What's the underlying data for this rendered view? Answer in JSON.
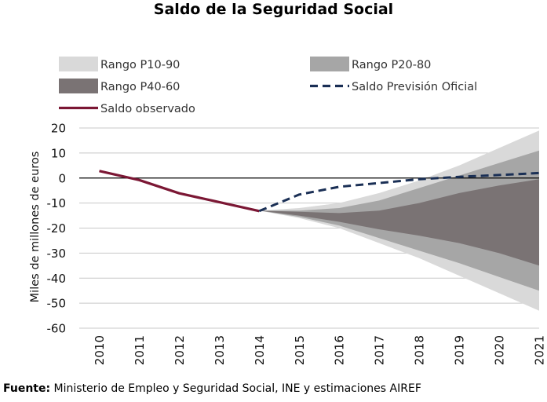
{
  "colors": {
    "p10_90": "#d9d9d9",
    "p20_80": "#a6a6a6",
    "p40_60": "#7a7374",
    "observed": "#7b1734",
    "official": "#1a2f55",
    "grid": "#c8c8c8",
    "zero_line": "#000000"
  },
  "source": {
    "label": "Fuente:",
    "text": " Ministerio de Empleo y Seguridad Social, INE y estimaciones AIREF"
  },
  "chart_data": {
    "type": "area",
    "title": "Saldo de la Seguridad Social",
    "ylabel": "Miles de millones de euros",
    "xlabel": "",
    "x": [
      2010,
      2011,
      2012,
      2013,
      2014,
      2015,
      2016,
      2017,
      2018,
      2019,
      2020,
      2021
    ],
    "x_tick_labels": [
      "2010",
      "2011",
      "2012",
      "2013",
      "2014",
      "2015",
      "2016",
      "2017",
      "2018",
      "2019",
      "2020",
      "2021"
    ],
    "ylim": [
      -60,
      20
    ],
    "y_ticks": [
      20,
      10,
      0,
      -10,
      -20,
      -30,
      -40,
      -50,
      -60
    ],
    "y_tick_labels": [
      "20",
      "10",
      "0",
      "-10",
      "-20",
      "-30",
      "-40",
      "-50",
      "-60"
    ],
    "grid": "horizontal",
    "legend_position": "top",
    "bands": [
      {
        "name": "Rango P10-90",
        "x": [
          2014,
          2015,
          2016,
          2017,
          2018,
          2019,
          2020,
          2021
        ],
        "upper": [
          -13,
          -12,
          -10,
          -6,
          -1,
          5,
          12,
          19
        ],
        "lower": [
          -13,
          -16,
          -20,
          -26,
          -32,
          -39,
          -46,
          -53
        ]
      },
      {
        "name": "Rango P20-80",
        "x": [
          2014,
          2015,
          2016,
          2017,
          2018,
          2019,
          2020,
          2021
        ],
        "upper": [
          -13,
          -13,
          -12,
          -9,
          -4,
          1,
          6,
          11
        ],
        "lower": [
          -13,
          -15.5,
          -19,
          -24,
          -29,
          -34,
          -39.5,
          -45
        ]
      },
      {
        "name": "Rango P40-60",
        "x": [
          2014,
          2015,
          2016,
          2017,
          2018,
          2019,
          2020,
          2021
        ],
        "upper": [
          -13,
          -13.5,
          -14,
          -13,
          -10,
          -6,
          -3,
          -0.5
        ],
        "lower": [
          -13,
          -15,
          -17.5,
          -20.5,
          -23,
          -26,
          -30,
          -35
        ]
      }
    ],
    "series": [
      {
        "name": "Saldo observado",
        "style": "solid",
        "x": [
          2010,
          2011,
          2012,
          2013,
          2014
        ],
        "y": [
          2.8,
          -0.8,
          -6.1,
          -9.6,
          -13.2
        ]
      },
      {
        "name": "Saldo Previsión Oficial",
        "style": "dashed",
        "x": [
          2014,
          2015,
          2016,
          2017,
          2018,
          2019,
          2020,
          2021
        ],
        "y": [
          -13.2,
          -6.6,
          -3.5,
          -2,
          -0.5,
          0.5,
          1.2,
          2
        ]
      }
    ],
    "legend": [
      {
        "label": "Rango P10-90",
        "kind": "box",
        "color_key": "p10_90"
      },
      {
        "label": "Rango P20-80",
        "kind": "box",
        "color_key": "p20_80"
      },
      {
        "label": "Rango P40-60",
        "kind": "box",
        "color_key": "p40_60"
      },
      {
        "label": "Saldo Previsión Oficial",
        "kind": "dash",
        "color_key": "official"
      },
      {
        "label": "Saldo observado",
        "kind": "line",
        "color_key": "observed"
      }
    ]
  }
}
